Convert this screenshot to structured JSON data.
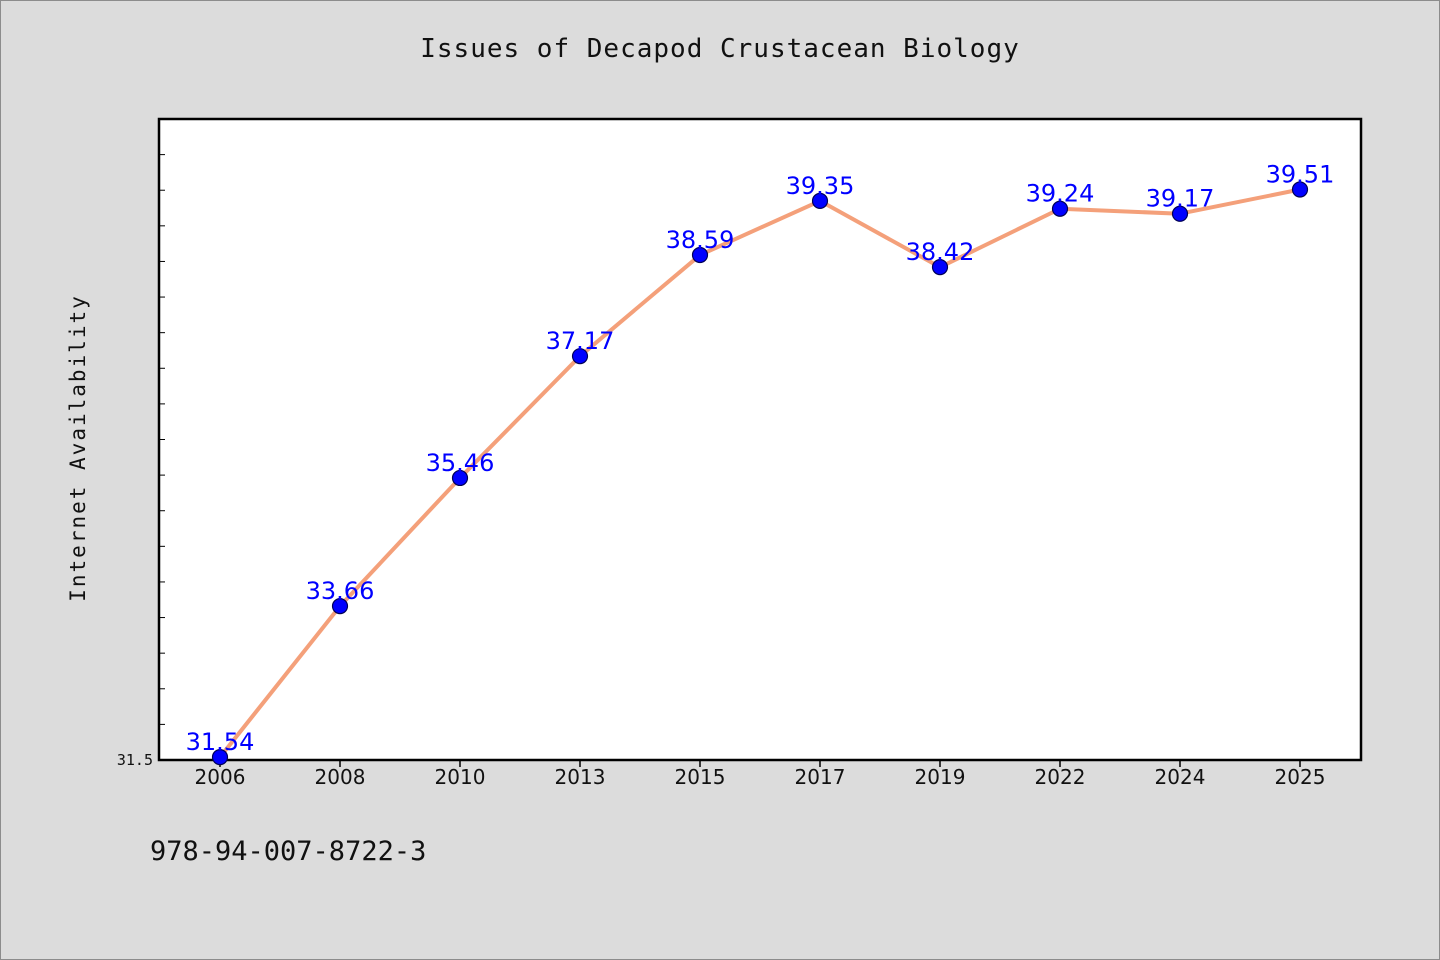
{
  "chart_data": {
    "type": "line",
    "title": "Issues of Decapod Crustacean Biology",
    "xlabel": "",
    "ylabel": "Internet Availability",
    "categories": [
      "2006",
      "2008",
      "2010",
      "2013",
      "2015",
      "2017",
      "2019",
      "2022",
      "2024",
      "2025"
    ],
    "values": [
      31.54,
      33.66,
      35.46,
      37.17,
      38.59,
      39.35,
      38.42,
      39.24,
      39.17,
      39.51
    ],
    "data_labels": [
      "31.54",
      "33.66",
      "35.46",
      "37.17",
      "38.59",
      "39.35",
      "38.42",
      "39.24",
      "39.17",
      "39.51"
    ],
    "ylim": [
      31.5,
      40.5
    ],
    "ytick_labels": [
      "31.5"
    ],
    "grid": false,
    "line_color": "#f4a07a",
    "marker_color": "#0000ff",
    "label_color": "#0000ff"
  },
  "footer": {
    "isbn": "978-94-007-8722-3"
  }
}
